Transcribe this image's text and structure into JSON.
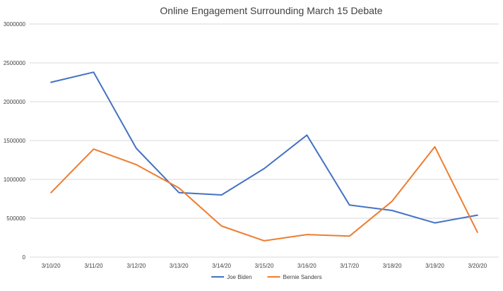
{
  "chart_data": {
    "type": "line",
    "title": "Online Engagement Surrounding March 15 Debate",
    "xlabel": "",
    "ylabel": "",
    "categories": [
      "3/10/20",
      "3/11/20",
      "3/12/20",
      "3/13/20",
      "3/14/20",
      "3/15/20",
      "3/16/20",
      "3/17/20",
      "3/18/20",
      "3/19/20",
      "3/20/20"
    ],
    "ylim": [
      0,
      3000000
    ],
    "yticks": [
      0,
      500000,
      1000000,
      1500000,
      2000000,
      2500000,
      3000000
    ],
    "grid": true,
    "legend_position": "bottom",
    "series": [
      {
        "name": "Joe Biden",
        "color": "#4472c4",
        "values": [
          2250000,
          2380000,
          1400000,
          830000,
          800000,
          1140000,
          1570000,
          670000,
          600000,
          440000,
          540000
        ]
      },
      {
        "name": "Bernie Sanders",
        "color": "#ed7d31",
        "values": [
          830000,
          1390000,
          1190000,
          890000,
          400000,
          210000,
          290000,
          270000,
          720000,
          1420000,
          320000
        ]
      }
    ]
  }
}
